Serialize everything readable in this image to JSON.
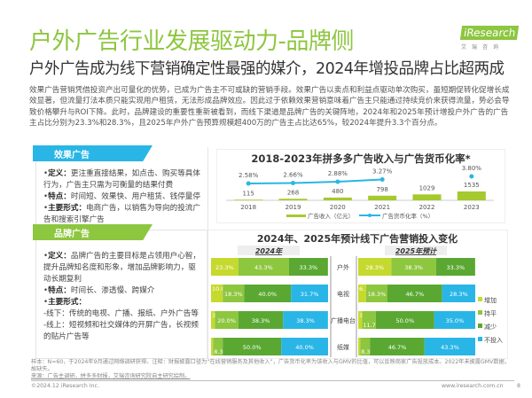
{
  "header": {
    "title": "户外广告行业发展驱动力-品牌侧",
    "subtitle": "户外广告成为线下营销确定性最强的媒介，2024年增投品牌占比超两成",
    "logo": "iResearch",
    "logo_sub": "艾瑞咨询"
  },
  "body": "效果广告营销凭借投资产出可量化的优势，已成为广告主不可或缺的营销手段。效果广告以卖点和利益点驱动单次购买，虽短期促转化促增长成效显著，但流量打法本质只能实现用户租赁，无法形成品牌效应。因此过于依赖效果营销意味着广告主只能通过持续竞价来获得流量，势必会导致价格攀升与ROI下降。此时，品牌建设的重要性重新被看到，而线下渠道是品牌广告的关键阵地，2024年和2025年预计增投户外广告的广告主占比分别为23.3%和28.3%，且2025年户外广告预算规模超400万的广告主占比达65%，较2024年提升3.3个百分点。",
  "panels": [
    {
      "tag": "效果广告",
      "color": "#29b6e6",
      "items": [
        {
          "k": "定义：",
          "v": "更注重直接结果，如点击、购买等具体行为，广告主只需为可衡量的结果付费"
        },
        {
          "k": "特点：",
          "v": "时间短、效果快、用户租赁、钱停量停"
        },
        {
          "k": "主要形式：",
          "v": "电商广告，以销售为导向的投流广告和搜索引擎广告"
        }
      ]
    },
    {
      "tag": "品牌广告",
      "color": "#8dc63f",
      "items": [
        {
          "k": "定义：",
          "v": "品牌广告的主要目标是占领用户心智，提升品牌知名度和形象，增加品牌影响力，驱动长期复利"
        },
        {
          "k": "特点：",
          "v": "时间长、渗透慢、跨媒介"
        },
        {
          "k": "主要形式：",
          "v": ""
        },
        {
          "k": "",
          "v": "-线下：传统的电视、广播、报纸、户外广告等"
        },
        {
          "k": "",
          "v": "-线上：短视频和社交媒体的开屏广告，长视频的贴片广告等"
        }
      ]
    }
  ],
  "chart_data": [
    {
      "type": "bar",
      "title": "2018-2023年拼多多广告收入与广告货币化率*",
      "categories": [
        "2018",
        "2019",
        "2020",
        "2021",
        "2022",
        "2023"
      ],
      "series": [
        {
          "name": "广告收入（亿元）",
          "type": "bar",
          "values": [
            115,
            268,
            480,
            798,
            1029,
            1535
          ],
          "color": "#a5c92e"
        },
        {
          "name": "广告货币化率（%）",
          "type": "line",
          "values": [
            2.58,
            2.66,
            2.88,
            3.27,
            null,
            3.8
          ],
          "labels": [
            "2.58%",
            "2.66%",
            "2.88%",
            "3.27%",
            "",
            "3.80%"
          ],
          "color": "#29b6e6"
        }
      ]
    },
    {
      "type": "bar",
      "stacked": true,
      "horizontal": true,
      "title": "2024年、2025年预计线下广告营销投入变化",
      "panels": [
        "2024年",
        "2025年预计"
      ],
      "categories": [
        "户外",
        "电视",
        "广播电台",
        "纸媒"
      ],
      "legend": [
        {
          "name": "增加",
          "color": "#c6d92e"
        },
        {
          "name": "持平",
          "color": "#8dc63f"
        },
        {
          "name": "减少",
          "color": "#5aa832"
        },
        {
          "name": "不投入",
          "color": "#29b6e6"
        }
      ],
      "data": {
        "2024年": [
          [
            23.3,
            43.3,
            33.3,
            0
          ],
          [
            10.0,
            18.3,
            40.0,
            31.7
          ],
          [
            3.3,
            20.0,
            38.3,
            38.3
          ],
          [
            1.7,
            8.3,
            50.0,
            40.0
          ]
        ],
        "2025年预计": [
          [
            28.3,
            38.3,
            33.3,
            0
          ],
          [
            6.7,
            18.3,
            46.7,
            28.3
          ],
          [
            3.3,
            11.7,
            50.0,
            35.0
          ],
          [
            1.7,
            8.3,
            46.7,
            43.3
          ]
        ]
      }
    }
  ],
  "footer": {
    "note": "样本：N=60，于2024年9月通过网络调研获得。注释：财报披露口径为“在线营销服务及其他收入”，广告货币化率为该收入与GMV的比值，可以反映商家广告投放成本。2022年未披露GMV数据，故缺失。",
    "source": "来源：广告主调研，拼多多财报，艾瑞咨询研究院自主研究绘制。",
    "copyright": "©2024.12 iResearch Inc.",
    "site": "www.iresearch.com.cn",
    "page": "8"
  }
}
